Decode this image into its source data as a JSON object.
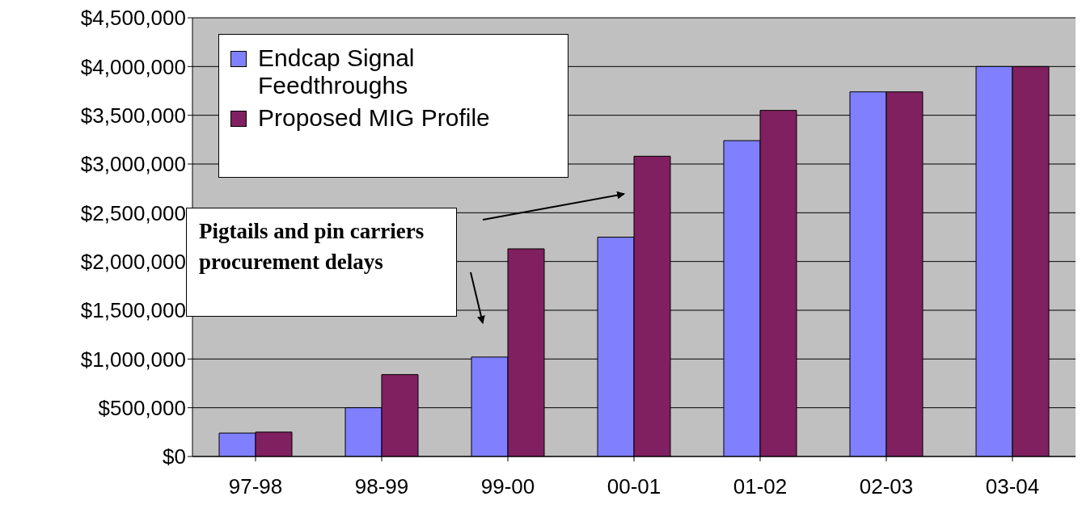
{
  "chart_data": {
    "type": "bar",
    "categories": [
      "97-98",
      "98-99",
      "99-00",
      "00-01",
      "01-02",
      "02-03",
      "03-04"
    ],
    "series": [
      {
        "name": "Endcap Signal Feedthroughs",
        "color": "#8080ff",
        "values": [
          240000,
          500000,
          1020000,
          2250000,
          3240000,
          3740000,
          4000000
        ]
      },
      {
        "name": "Proposed MIG Profile",
        "color": "#802060",
        "values": [
          250000,
          840000,
          2130000,
          3080000,
          3550000,
          3740000,
          4000000
        ]
      }
    ],
    "ylim": [
      0,
      4500000
    ],
    "yticks": [
      {
        "value": 0,
        "label": "$0"
      },
      {
        "value": 500000,
        "label": "$500,000"
      },
      {
        "value": 1000000,
        "label": "$1,000,000"
      },
      {
        "value": 1500000,
        "label": "$1,500,000"
      },
      {
        "value": 2000000,
        "label": "$2,000,000"
      },
      {
        "value": 2500000,
        "label": "$2,500,000"
      },
      {
        "value": 3000000,
        "label": "$3,000,000"
      },
      {
        "value": 3500000,
        "label": "$3,500,000"
      },
      {
        "value": 4000000,
        "label": "$4,000,000"
      },
      {
        "value": 4500000,
        "label": "$4,500,000"
      }
    ],
    "grid": "y",
    "legend": "top left",
    "annotations": [
      "Pigtails and pin carriers procurement delays"
    ]
  }
}
